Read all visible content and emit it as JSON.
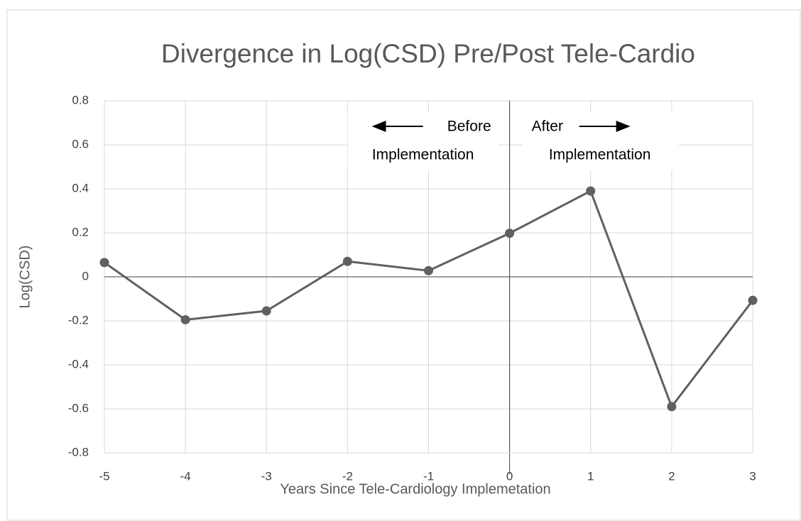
{
  "chart_data": {
    "type": "line",
    "title": "Divergence in Log(CSD) Pre/Post Tele-Cardio",
    "x_label": "Years Since Tele-Cardiology Implemetation",
    "y_label": "Log(CSD)",
    "x": [
      -5,
      -4,
      -3,
      -2,
      -1,
      0,
      1,
      2,
      3
    ],
    "series": [
      {
        "name": "Log(CSD)",
        "color": "#606060",
        "values": [
          0.065,
          -0.195,
          -0.155,
          0.07,
          0.028,
          0.198,
          0.39,
          -0.59,
          -0.107
        ]
      }
    ],
    "xlim": [
      -5,
      3
    ],
    "xticks": [
      -5,
      -4,
      -3,
      -2,
      -1,
      0,
      1,
      2,
      3
    ],
    "ylim": [
      -0.8,
      0.8
    ],
    "yticks": [
      0.8,
      0.6,
      0.4,
      0.2,
      0,
      -0.2,
      -0.4,
      -0.6,
      -0.8
    ],
    "grid": true,
    "annotations": [
      {
        "lines": [
          "Before",
          "Implementation"
        ]
      },
      {
        "lines": [
          "After",
          "Implementation"
        ]
      }
    ]
  }
}
